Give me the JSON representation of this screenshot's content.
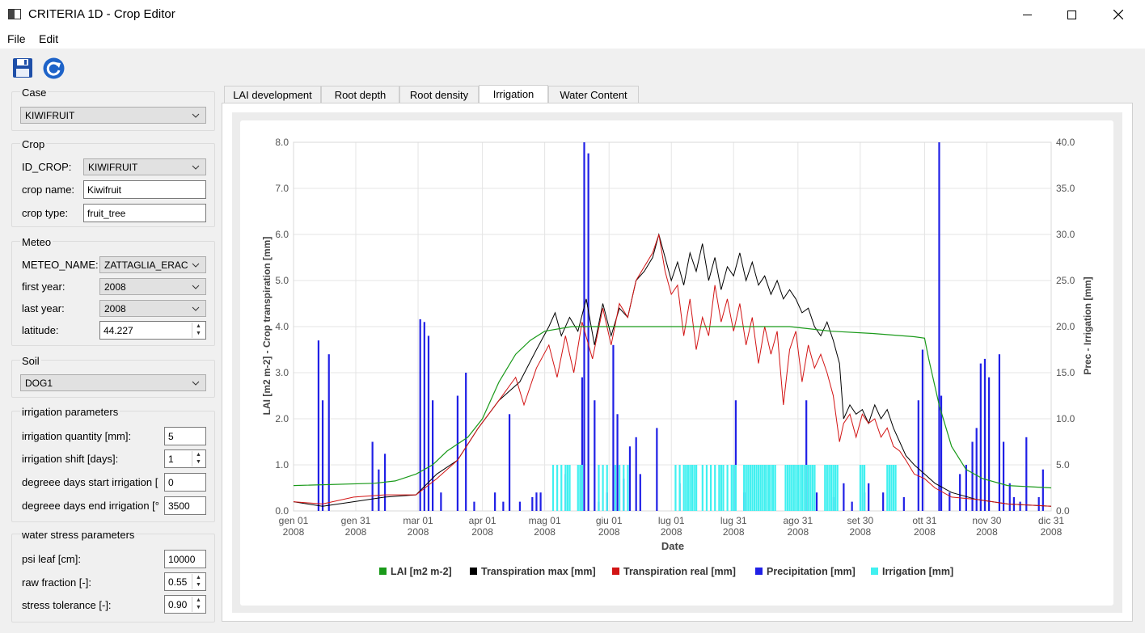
{
  "window": {
    "title": "CRITERIA 1D - Crop Editor"
  },
  "menu": {
    "file": "File",
    "edit": "Edit"
  },
  "toolbar": {
    "save_icon": "save-icon",
    "reload_icon": "reload-icon"
  },
  "case": {
    "title": "Case",
    "value": "KIWIFRUIT"
  },
  "crop": {
    "title": "Crop",
    "id_label": "ID_CROP:",
    "id_value": "KIWIFRUIT",
    "name_label": "crop name:",
    "name_value": "Kiwifruit",
    "type_label": "crop type:",
    "type_value": "fruit_tree"
  },
  "meteo": {
    "title": "Meteo",
    "name_label": "METEO_NAME:",
    "name_value": "ZATTAGLIA_ERAC",
    "first_label": "first year:",
    "first_value": "2008",
    "last_label": "last year:",
    "last_value": "2008",
    "lat_label": "latitude:",
    "lat_value": "44.227"
  },
  "soil": {
    "title": "Soil",
    "value": "DOG1"
  },
  "irrigation": {
    "title": "irrigation parameters",
    "qty_label": "irrigation quantity [mm]:",
    "qty_value": "5",
    "shift_label": "irrigation shift [days]:",
    "shift_value": "1",
    "start_label": "degreee days start irrigation [",
    "start_value": "0",
    "end_label": "degreee days end irrigation [°",
    "end_value": "3500"
  },
  "stress": {
    "title": "water stress parameters",
    "psi_label": "psi leaf [cm]:",
    "psi_value": "10000",
    "raw_label": "raw fraction [-]:",
    "raw_value": "0.55",
    "tol_label": "stress tolerance [-]:",
    "tol_value": "0.90"
  },
  "tabs": [
    "LAI development",
    "Root depth",
    "Root density",
    "Irrigation",
    "Water Content"
  ],
  "active_tab": "Irrigation",
  "chart_data": {
    "type": "line",
    "xlabel": "Date",
    "ylabel_left": "LAI [m2 m-2] - Crop transpiration [mm]",
    "ylabel_right": "Prec - Irrigation [mm]",
    "ylim_left": [
      0,
      8
    ],
    "ylim_right": [
      0,
      40
    ],
    "yticks_left": [
      "0.0",
      "1.0",
      "2.0",
      "3.0",
      "4.0",
      "5.0",
      "6.0",
      "7.0",
      "8.0"
    ],
    "yticks_right": [
      "0.0",
      "5.0",
      "10.0",
      "15.0",
      "20.0",
      "25.0",
      "30.0",
      "35.0",
      "40.0"
    ],
    "xticks": [
      {
        "doy": 1,
        "l1": "gen 01",
        "l2": "2008"
      },
      {
        "doy": 31,
        "l1": "gen 31",
        "l2": "2008"
      },
      {
        "doy": 61,
        "l1": "mar 01",
        "l2": "2008"
      },
      {
        "doy": 92,
        "l1": "apr 01",
        "l2": "2008"
      },
      {
        "doy": 122,
        "l1": "mag 01",
        "l2": "2008"
      },
      {
        "doy": 153,
        "l1": "giu 01",
        "l2": "2008"
      },
      {
        "doy": 183,
        "l1": "lug 01",
        "l2": "2008"
      },
      {
        "doy": 213,
        "l1": "lug 31",
        "l2": "2008"
      },
      {
        "doy": 244,
        "l1": "ago 31",
        "l2": "2008"
      },
      {
        "doy": 274,
        "l1": "set 30",
        "l2": "2008"
      },
      {
        "doy": 305,
        "l1": "ott 31",
        "l2": "2008"
      },
      {
        "doy": 335,
        "l1": "nov 30",
        "l2": "2008"
      },
      {
        "doy": 366,
        "l1": "dic 31",
        "l2": "2008"
      }
    ],
    "colors": {
      "lai": "#1a9a1a",
      "tmax": "#000000",
      "treal": "#d21414",
      "prec": "#2020e6",
      "irr": "#40f0f0"
    },
    "legend": [
      "LAI [m2 m-2]",
      "Transpiration max [mm]",
      "Transpiration real [mm]",
      "Precipitation [mm]",
      "Irrigation [mm]"
    ],
    "lai": [
      [
        1,
        0.55
      ],
      [
        40,
        0.6
      ],
      [
        50,
        0.65
      ],
      [
        60,
        0.8
      ],
      [
        68,
        1.0
      ],
      [
        75,
        1.3
      ],
      [
        85,
        1.6
      ],
      [
        92,
        2.0
      ],
      [
        100,
        2.8
      ],
      [
        108,
        3.4
      ],
      [
        115,
        3.7
      ],
      [
        122,
        3.9
      ],
      [
        135,
        4.0
      ],
      [
        183,
        4.0
      ],
      [
        240,
        4.0
      ],
      [
        260,
        3.9
      ],
      [
        280,
        3.85
      ],
      [
        300,
        3.78
      ],
      [
        305,
        3.75
      ],
      [
        307,
        3.3
      ],
      [
        312,
        2.3
      ],
      [
        318,
        1.4
      ],
      [
        325,
        0.9
      ],
      [
        333,
        0.7
      ],
      [
        345,
        0.55
      ],
      [
        366,
        0.5
      ]
    ],
    "tmax": [
      [
        1,
        0.2
      ],
      [
        15,
        0.1
      ],
      [
        30,
        0.2
      ],
      [
        45,
        0.3
      ],
      [
        60,
        0.35
      ],
      [
        70,
        0.8
      ],
      [
        80,
        1.1
      ],
      [
        90,
        1.8
      ],
      [
        100,
        2.4
      ],
      [
        110,
        2.8
      ],
      [
        118,
        3.5
      ],
      [
        124,
        4.0
      ],
      [
        127,
        4.3
      ],
      [
        130,
        3.8
      ],
      [
        134,
        4.2
      ],
      [
        138,
        3.9
      ],
      [
        142,
        4.6
      ],
      [
        146,
        3.6
      ],
      [
        150,
        4.5
      ],
      [
        154,
        3.8
      ],
      [
        158,
        4.4
      ],
      [
        162,
        4.2
      ],
      [
        166,
        5.0
      ],
      [
        170,
        5.2
      ],
      [
        174,
        5.5
      ],
      [
        177,
        6.0
      ],
      [
        180,
        5.5
      ],
      [
        183,
        5.0
      ],
      [
        186,
        5.4
      ],
      [
        189,
        4.9
      ],
      [
        192,
        5.6
      ],
      [
        195,
        5.2
      ],
      [
        198,
        5.8
      ],
      [
        201,
        5.0
      ],
      [
        204,
        5.5
      ],
      [
        207,
        4.8
      ],
      [
        210,
        5.3
      ],
      [
        213,
        5.1
      ],
      [
        216,
        5.6
      ],
      [
        219,
        5.0
      ],
      [
        222,
        5.4
      ],
      [
        225,
        4.9
      ],
      [
        228,
        5.1
      ],
      [
        231,
        4.7
      ],
      [
        234,
        5.0
      ],
      [
        237,
        4.6
      ],
      [
        240,
        4.8
      ],
      [
        243,
        4.6
      ],
      [
        246,
        4.3
      ],
      [
        249,
        4.4
      ],
      [
        252,
        4.0
      ],
      [
        255,
        3.8
      ],
      [
        258,
        4.1
      ],
      [
        261,
        3.7
      ],
      [
        264,
        3.2
      ],
      [
        266,
        2.0
      ],
      [
        269,
        2.3
      ],
      [
        272,
        2.1
      ],
      [
        275,
        2.2
      ],
      [
        278,
        1.9
      ],
      [
        281,
        2.3
      ],
      [
        284,
        2.0
      ],
      [
        287,
        2.2
      ],
      [
        290,
        1.8
      ],
      [
        293,
        1.5
      ],
      [
        296,
        1.2
      ],
      [
        300,
        1.0
      ],
      [
        305,
        0.8
      ],
      [
        310,
        0.6
      ],
      [
        318,
        0.4
      ],
      [
        330,
        0.25
      ],
      [
        345,
        0.15
      ],
      [
        366,
        0.1
      ]
    ],
    "treal": [
      [
        1,
        0.2
      ],
      [
        15,
        0.15
      ],
      [
        30,
        0.3
      ],
      [
        45,
        0.35
      ],
      [
        60,
        0.35
      ],
      [
        70,
        0.7
      ],
      [
        80,
        1.1
      ],
      [
        90,
        1.8
      ],
      [
        100,
        2.4
      ],
      [
        108,
        2.9
      ],
      [
        112,
        2.3
      ],
      [
        118,
        3.1
      ],
      [
        124,
        3.6
      ],
      [
        128,
        2.9
      ],
      [
        132,
        3.8
      ],
      [
        136,
        3.0
      ],
      [
        140,
        4.1
      ],
      [
        145,
        3.3
      ],
      [
        150,
        4.4
      ],
      [
        154,
        3.6
      ],
      [
        158,
        4.5
      ],
      [
        162,
        4.2
      ],
      [
        166,
        5.0
      ],
      [
        170,
        5.3
      ],
      [
        174,
        5.6
      ],
      [
        177,
        6.0
      ],
      [
        180,
        5.2
      ],
      [
        183,
        4.7
      ],
      [
        186,
        4.9
      ],
      [
        189,
        3.8
      ],
      [
        192,
        4.6
      ],
      [
        195,
        3.5
      ],
      [
        198,
        4.2
      ],
      [
        201,
        3.8
      ],
      [
        204,
        4.9
      ],
      [
        207,
        4.1
      ],
      [
        210,
        4.6
      ],
      [
        213,
        3.9
      ],
      [
        216,
        4.5
      ],
      [
        219,
        3.6
      ],
      [
        222,
        4.2
      ],
      [
        225,
        3.2
      ],
      [
        228,
        4.0
      ],
      [
        231,
        3.4
      ],
      [
        234,
        3.9
      ],
      [
        237,
        2.3
      ],
      [
        240,
        3.5
      ],
      [
        243,
        3.9
      ],
      [
        246,
        2.8
      ],
      [
        249,
        3.6
      ],
      [
        252,
        3.1
      ],
      [
        255,
        3.4
      ],
      [
        258,
        3.0
      ],
      [
        261,
        2.5
      ],
      [
        264,
        1.5
      ],
      [
        266,
        1.9
      ],
      [
        269,
        2.1
      ],
      [
        272,
        1.6
      ],
      [
        275,
        2.1
      ],
      [
        278,
        1.9
      ],
      [
        281,
        2.0
      ],
      [
        284,
        1.6
      ],
      [
        287,
        1.8
      ],
      [
        290,
        1.4
      ],
      [
        293,
        1.3
      ],
      [
        296,
        1.1
      ],
      [
        300,
        0.8
      ],
      [
        305,
        0.7
      ],
      [
        310,
        0.5
      ],
      [
        318,
        0.3
      ],
      [
        330,
        0.25
      ],
      [
        345,
        0.15
      ],
      [
        366,
        0.1
      ]
    ],
    "prec": [
      [
        13,
        18.5
      ],
      [
        15,
        12
      ],
      [
        18,
        17
      ],
      [
        39,
        7.5
      ],
      [
        42,
        4.5
      ],
      [
        45,
        6.2
      ],
      [
        62,
        20.8
      ],
      [
        64,
        20.5
      ],
      [
        66,
        19
      ],
      [
        68,
        12
      ],
      [
        72,
        2
      ],
      [
        80,
        12.5
      ],
      [
        84,
        15
      ],
      [
        88,
        1
      ],
      [
        98,
        2
      ],
      [
        102,
        1
      ],
      [
        105,
        10.5
      ],
      [
        110,
        1
      ],
      [
        116,
        1.5
      ],
      [
        118,
        2
      ],
      [
        120,
        2
      ],
      [
        132,
        4
      ],
      [
        140,
        14.5
      ],
      [
        141,
        40
      ],
      [
        143,
        38.8
      ],
      [
        146,
        12
      ],
      [
        148,
        1
      ],
      [
        152,
        2
      ],
      [
        155,
        18
      ],
      [
        157,
        10.5
      ],
      [
        160,
        3.5
      ],
      [
        163,
        7
      ],
      [
        166,
        8
      ],
      [
        168,
        4
      ],
      [
        176,
        9
      ],
      [
        187,
        3
      ],
      [
        214,
        12
      ],
      [
        218,
        2
      ],
      [
        248,
        12
      ],
      [
        253,
        2
      ],
      [
        261,
        1.5
      ],
      [
        266,
        3
      ],
      [
        270,
        1
      ],
      [
        276,
        2
      ],
      [
        278,
        3
      ],
      [
        285,
        2
      ],
      [
        295,
        1.5
      ],
      [
        302,
        12
      ],
      [
        304,
        17.5
      ],
      [
        312,
        40
      ],
      [
        313,
        12.5
      ],
      [
        317,
        2
      ],
      [
        322,
        4
      ],
      [
        325,
        5
      ],
      [
        328,
        7.5
      ],
      [
        330,
        9
      ],
      [
        332,
        16
      ],
      [
        334,
        16.5
      ],
      [
        336,
        14.5
      ],
      [
        341,
        17
      ],
      [
        343,
        7.5
      ],
      [
        346,
        3
      ],
      [
        348,
        1.5
      ],
      [
        351,
        1
      ],
      [
        354,
        8
      ],
      [
        360,
        1.5
      ],
      [
        362,
        4.5
      ]
    ],
    "irr": [
      [
        126,
        5
      ],
      [
        128,
        5
      ],
      [
        130,
        5
      ],
      [
        132,
        5
      ],
      [
        133,
        5
      ],
      [
        134,
        5
      ],
      [
        138,
        5
      ],
      [
        139,
        5
      ],
      [
        140,
        5
      ],
      [
        148,
        5
      ],
      [
        150,
        5
      ],
      [
        152,
        5
      ],
      [
        156,
        5
      ],
      [
        158,
        5
      ],
      [
        160,
        5
      ],
      [
        162,
        5
      ],
      [
        185,
        5
      ],
      [
        187,
        5
      ],
      [
        189,
        5
      ],
      [
        190,
        5
      ],
      [
        191,
        5
      ],
      [
        192,
        5
      ],
      [
        193,
        5
      ],
      [
        194,
        5
      ],
      [
        195,
        5
      ],
      [
        198,
        5
      ],
      [
        200,
        5
      ],
      [
        202,
        5
      ],
      [
        204,
        5
      ],
      [
        206,
        5
      ],
      [
        207,
        5
      ],
      [
        208,
        5
      ],
      [
        210,
        5
      ],
      [
        212,
        5
      ],
      [
        213,
        5
      ],
      [
        214,
        5
      ],
      [
        218,
        5
      ],
      [
        219,
        5
      ],
      [
        220,
        5
      ],
      [
        221,
        5
      ],
      [
        222,
        5
      ],
      [
        223,
        5
      ],
      [
        224,
        5
      ],
      [
        225,
        5
      ],
      [
        226,
        5
      ],
      [
        227,
        5
      ],
      [
        228,
        5
      ],
      [
        229,
        5
      ],
      [
        230,
        5
      ],
      [
        231,
        5
      ],
      [
        232,
        5
      ],
      [
        233,
        5
      ],
      [
        238,
        5
      ],
      [
        239,
        5
      ],
      [
        240,
        5
      ],
      [
        241,
        5
      ],
      [
        242,
        5
      ],
      [
        243,
        5
      ],
      [
        244,
        5
      ],
      [
        245,
        5
      ],
      [
        246,
        5
      ],
      [
        247,
        5
      ],
      [
        248,
        5
      ],
      [
        249,
        5
      ],
      [
        250,
        5
      ],
      [
        251,
        5
      ],
      [
        252,
        5
      ],
      [
        257,
        5
      ],
      [
        258,
        5
      ],
      [
        259,
        5
      ],
      [
        260,
        5
      ],
      [
        261,
        5
      ],
      [
        262,
        5
      ],
      [
        263,
        5
      ],
      [
        274,
        5
      ],
      [
        275,
        5
      ],
      [
        276,
        5
      ],
      [
        287,
        5
      ],
      [
        288,
        5
      ],
      [
        289,
        5
      ],
      [
        290,
        5
      ],
      [
        291,
        5
      ]
    ]
  }
}
